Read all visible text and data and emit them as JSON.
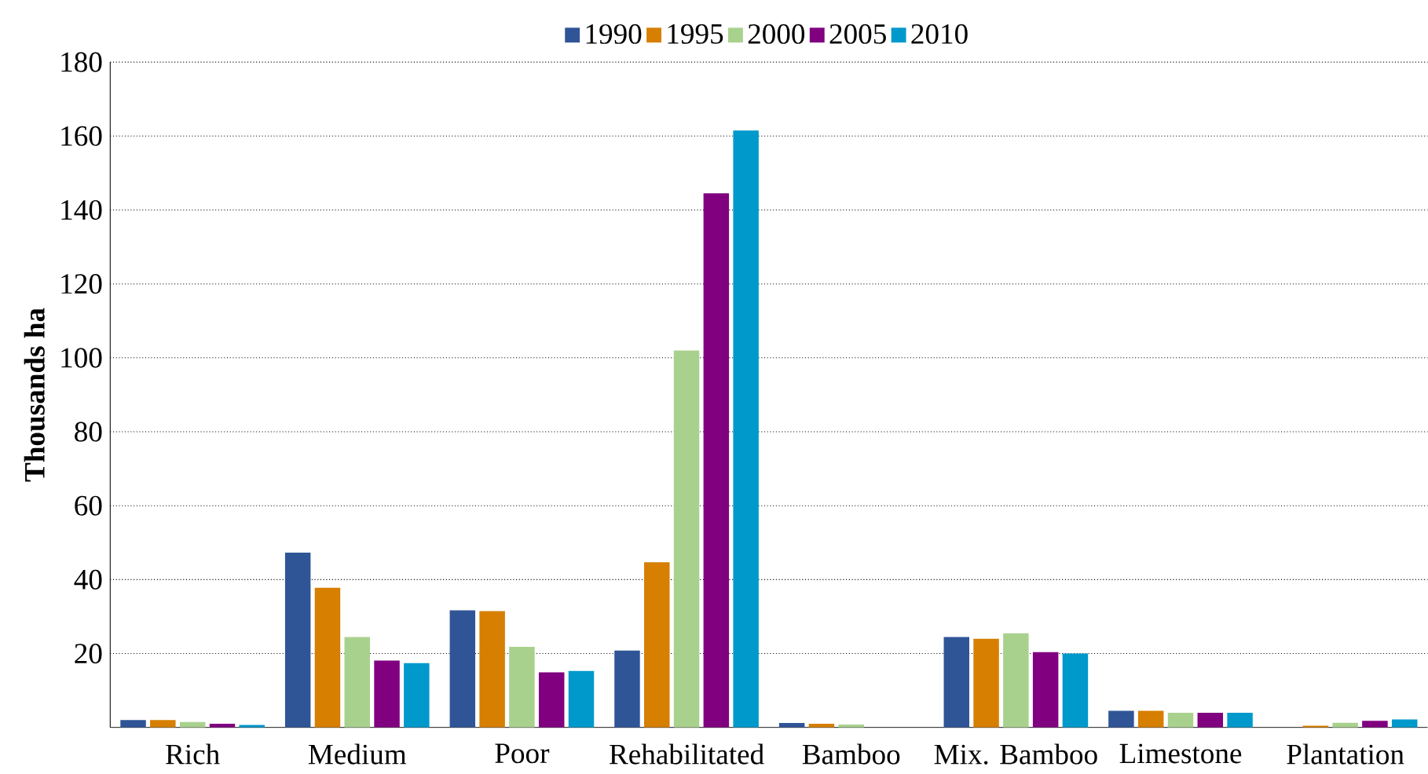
{
  "chart_data": {
    "type": "bar",
    "ylabel": "Thousands ha",
    "categories": [
      "Rich",
      "Medium",
      "Poor",
      "Rehabilitated",
      "Bamboo",
      "Mix. Bamboo",
      "Limestone",
      "Plantation"
    ],
    "series": [
      {
        "name": "1990",
        "color": "#2f5597",
        "values": [
          2,
          47.3,
          31.7,
          20.8,
          1.2,
          24.5,
          4.5,
          0
        ]
      },
      {
        "name": "1995",
        "color": "#d67f00",
        "values": [
          2,
          37.8,
          31.5,
          44.7,
          1,
          24,
          4.5,
          0.5
        ]
      },
      {
        "name": "2000",
        "color": "#a9d18e",
        "values": [
          1.5,
          24.5,
          21.8,
          102,
          0.8,
          25.5,
          4,
          1.3
        ]
      },
      {
        "name": "2005",
        "color": "#800080",
        "values": [
          1,
          18.1,
          14.9,
          144.5,
          null,
          20.4,
          4,
          1.8
        ]
      },
      {
        "name": "2010",
        "color": "#0099cc",
        "values": [
          0.7,
          17.4,
          15.3,
          161.5,
          null,
          20,
          4,
          2.2
        ]
      }
    ],
    "ylim": [
      0,
      180
    ],
    "yticks": [
      20,
      40,
      60,
      80,
      100,
      120,
      140,
      160,
      180
    ],
    "grid": "y",
    "legend": "top"
  }
}
